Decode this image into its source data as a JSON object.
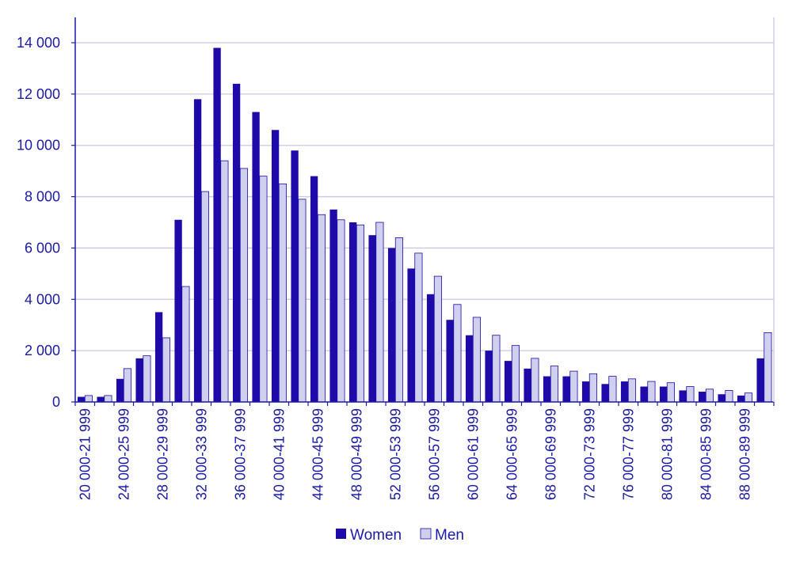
{
  "colors": {
    "women": "#1e0aa8",
    "men": "#cfcfee",
    "axis": "#1a1aa6",
    "grid": "#c8c8e4",
    "text": "#1a1aa6"
  },
  "chart_data": {
    "type": "bar",
    "title": "",
    "xlabel": "",
    "ylabel": "",
    "ylim": [
      0,
      15000
    ],
    "yticks": [
      "0",
      "2 000",
      "4 000",
      "6 000",
      "8 000",
      "10 000",
      "12 000",
      "14 000"
    ],
    "ytick_values": [
      0,
      2000,
      4000,
      6000,
      8000,
      10000,
      12000,
      14000
    ],
    "grid": true,
    "legend_position": "bottom",
    "categories": [
      "20 000-21 999",
      "22 000-23 999",
      "24 000-25 999",
      "26 000-27 999",
      "28 000-29 999",
      "30 000-31 999",
      "32 000-33 999",
      "34 000-35 999",
      "36 000-37 999",
      "38 000-39 999",
      "40 000-41 999",
      "42 000-43 999",
      "44 000-45 999",
      "46 000-47 999",
      "48 000-49 999",
      "50 000-51 999",
      "52 000-53 999",
      "54 000-55 999",
      "56 000-57 999",
      "58 000-59 999",
      "60 000-61 999",
      "62 000-63 999",
      "64 000-65 999",
      "66 000-67 999",
      "68 000-69 999",
      "70 000-71 999",
      "72 000-73 999",
      "74 000-75 999",
      "76 000-77 999",
      "78 000-79 999",
      "80 000-81 999",
      "82 000-83 999",
      "84 000-85 999",
      "86 000-87 999",
      "88 000-89 999",
      "90 000-"
    ],
    "visible_tick_labels": [
      "20 000-21 999",
      "24 000-25 999",
      "28 000-29 999",
      "32 000-33 999",
      "36 000-37 999",
      "40 000-41 999",
      "44 000-45 999",
      "48 000-49 999",
      "52 000-53 999",
      "56 000-57 999",
      "60 000-61 999",
      "64 000-65 999",
      "68 000-69 999",
      "72 000-73 999",
      "76 000-77 999",
      "80 000-81 999",
      "84 000-85 999",
      "88 000-89 999"
    ],
    "series": [
      {
        "name": "Women",
        "values": [
          200,
          200,
          900,
          1700,
          3500,
          7100,
          11800,
          13800,
          12400,
          11300,
          10600,
          9800,
          8800,
          7500,
          7000,
          6500,
          6000,
          5200,
          4200,
          3200,
          2600,
          2000,
          1600,
          1300,
          1000,
          1000,
          800,
          700,
          800,
          600,
          600,
          450,
          400,
          300,
          250,
          1700
        ]
      },
      {
        "name": "Men",
        "values": [
          250,
          250,
          1300,
          1800,
          2500,
          4500,
          8200,
          9400,
          9100,
          8800,
          8500,
          7900,
          7300,
          7100,
          6900,
          7000,
          6400,
          5800,
          4900,
          3800,
          3300,
          2600,
          2200,
          1700,
          1400,
          1200,
          1100,
          1000,
          900,
          800,
          750,
          600,
          500,
          450,
          350,
          2700
        ]
      }
    ]
  }
}
